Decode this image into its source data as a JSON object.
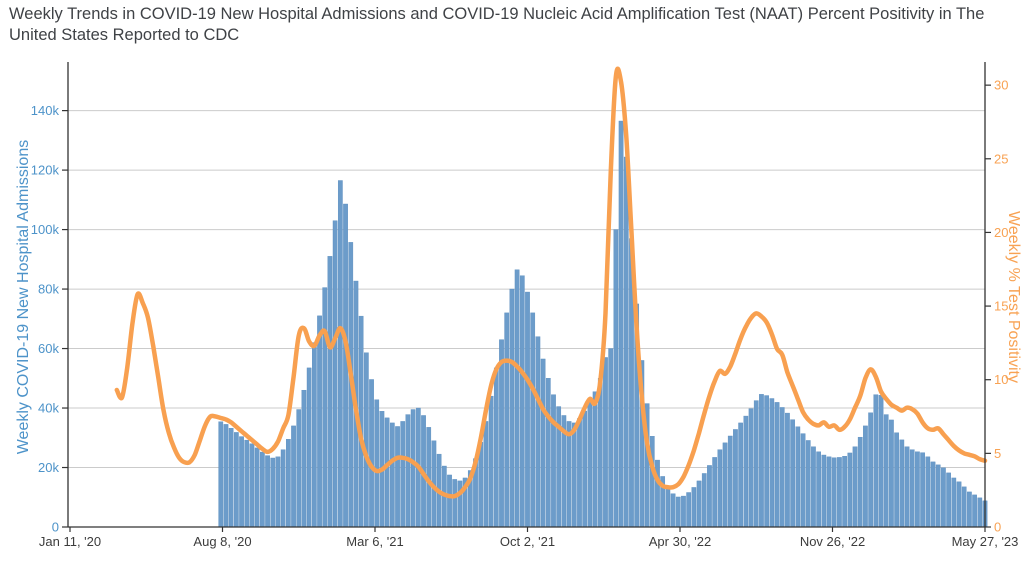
{
  "title": "Weekly Trends in COVID-19 New Hospital Admissions and COVID-19 Nucleic Acid Amplification Test (NAAT) Percent Positivity in The United States Reported to CDC",
  "colors": {
    "background": "#ffffff",
    "bar_fill": "#6c9cca",
    "bar_border": "#5a8dbe",
    "line": "#f8a050",
    "left_axis_text": "#4d93c9",
    "right_axis_text": "#f8a253",
    "x_tick_text": "#3c3c3c",
    "title_text": "#3f4246",
    "gridline": "#cbcbcb",
    "axis_line": "#333333"
  },
  "chart_data": {
    "type": "combo-bar-line",
    "grid": true,
    "legend_position": "none",
    "weeks_total": 177,
    "x_tick_labels": [
      "Jan 11, '20",
      "Aug 8, '20",
      "Mar 6, '21",
      "Oct 2, '21",
      "Apr 30, '22",
      "Nov 26, '22",
      "May 27, '23"
    ],
    "x_tick_weeks": [
      0,
      30,
      60,
      90,
      120,
      150,
      176
    ],
    "left_axis": {
      "title": "Weekly COVID-19 New Hospital Admissions",
      "tick_labels": [
        "0",
        "20k",
        "40k",
        "60k",
        "80k",
        "100k",
        "120k",
        "140k"
      ],
      "tick_values_thousands": [
        0,
        20,
        40,
        60,
        80,
        100,
        120,
        140
      ],
      "max_thousands": 155
    },
    "right_axis": {
      "title": "Weekly % Test Positivity",
      "tick_labels": [
        "0",
        "5",
        "10",
        "15",
        "20",
        "25",
        "30"
      ],
      "tick_values": [
        0,
        5,
        10,
        15,
        20,
        25,
        30
      ],
      "max": 31.3
    },
    "series": [
      {
        "name": "Weekly COVID-19 New Hospital Admissions",
        "type": "bar",
        "axis": "left",
        "unit": "thousands of admissions",
        "start_week": 29,
        "values": [
          35.4,
          34.5,
          33.2,
          31.8,
          30.4,
          29.2,
          28.0,
          26.6,
          25.2,
          24.0,
          23.2,
          23.6,
          26.0,
          29.5,
          34.0,
          39.5,
          46.0,
          53.5,
          62.0,
          71.0,
          80.5,
          91.0,
          103.0,
          116.5,
          108.6,
          95.7,
          82.7,
          70.9,
          58.6,
          49.6,
          42.8,
          38.9,
          36.7,
          35.0,
          33.8,
          35.5,
          37.8,
          39.5,
          40.0,
          37.5,
          33.5,
          29.0,
          24.5,
          20.5,
          17.5,
          16.0,
          15.5,
          16.5,
          19.0,
          23.0,
          28.5,
          35.5,
          44.0,
          53.5,
          63.0,
          72.0,
          80.0,
          86.5,
          84.5,
          79.0,
          72.0,
          64.0,
          56.5,
          50.0,
          44.5,
          40.5,
          37.5,
          35.5,
          35.0,
          36.5,
          39.0,
          42.0,
          45.5,
          50.0,
          57.0,
          60.0,
          100.0,
          136.5,
          124.4,
          97.0,
          75.0,
          56.0,
          41.5,
          30.5,
          22.5,
          17.0,
          13.5,
          11.2,
          10.1,
          10.4,
          11.6,
          13.3,
          15.5,
          18.0,
          20.7,
          23.4,
          26.0,
          28.3,
          30.6,
          32.8,
          35.0,
          37.3,
          39.8,
          42.5,
          44.6,
          44.2,
          43.2,
          41.9,
          40.2,
          38.3,
          36.1,
          33.7,
          31.4,
          29.1,
          27.0,
          25.3,
          24.2,
          23.6,
          23.3,
          23.4,
          23.8,
          24.9,
          27.0,
          30.2,
          34.0,
          38.4,
          44.5,
          44.3,
          37.8,
          36.0,
          31.7,
          29.3,
          27.0,
          26.0,
          25.3,
          25.0,
          23.6,
          21.9,
          20.9,
          19.9,
          18.2,
          16.5,
          15.2,
          13.5,
          11.8,
          10.8,
          9.8,
          8.8
        ]
      },
      {
        "name": "Weekly % Test Positivity",
        "type": "line",
        "axis": "right",
        "unit": "%",
        "start_week": 9,
        "values": [
          9.3,
          8.8,
          10.8,
          13.8,
          15.8,
          15.2,
          14.2,
          12.3,
          10.1,
          7.9,
          6.4,
          5.4,
          4.7,
          4.4,
          4.4,
          4.9,
          5.9,
          6.9,
          7.5,
          7.5,
          7.4,
          7.3,
          7.1,
          6.8,
          6.5,
          6.2,
          5.9,
          5.6,
          5.3,
          5.1,
          5.3,
          5.8,
          6.7,
          7.6,
          10.2,
          13.0,
          13.5,
          12.6,
          12.3,
          13.0,
          13.3,
          12.2,
          12.8,
          13.5,
          12.6,
          10.4,
          8.0,
          6.0,
          4.8,
          4.1,
          3.8,
          3.9,
          4.2,
          4.5,
          4.7,
          4.7,
          4.6,
          4.4,
          4.1,
          3.6,
          3.1,
          2.7,
          2.4,
          2.2,
          2.1,
          2.1,
          2.3,
          2.7,
          3.3,
          4.4,
          6.0,
          7.9,
          9.6,
          10.7,
          11.2,
          11.3,
          11.2,
          10.9,
          10.5,
          10.0,
          9.4,
          8.7,
          8.0,
          7.5,
          7.1,
          6.8,
          6.5,
          6.3,
          6.6,
          7.3,
          8.1,
          8.7,
          8.4,
          9.9,
          14.5,
          24.0,
          30.6,
          30.2,
          26.5,
          20.0,
          13.5,
          8.8,
          5.7,
          4.1,
          3.2,
          2.8,
          2.7,
          2.7,
          2.9,
          3.4,
          4.2,
          5.2,
          6.4,
          7.7,
          8.9,
          9.9,
          10.6,
          10.4,
          10.9,
          11.8,
          12.8,
          13.6,
          14.2,
          14.5,
          14.3,
          13.9,
          13.1,
          12.1,
          11.7,
          10.5,
          9.6,
          8.7,
          7.8,
          7.3,
          7.0,
          6.9,
          7.1,
          6.8,
          6.9,
          6.6,
          6.8,
          7.3,
          8.1,
          8.9,
          10.1,
          10.7,
          10.2,
          9.2,
          8.7,
          8.3,
          8.1,
          7.9,
          8.1,
          8.0,
          7.7,
          7.1,
          6.7,
          6.6,
          6.7,
          6.3,
          5.9,
          5.5,
          5.2,
          5.0,
          4.9,
          4.8,
          4.6,
          4.5
        ]
      }
    ]
  }
}
